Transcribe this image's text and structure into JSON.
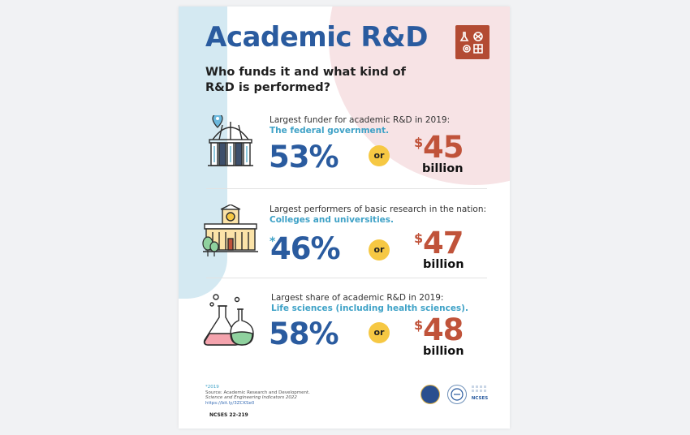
{
  "header": {
    "title": "Academic R&D",
    "subtitle": "Who funds it and what kind of R&D is performed?"
  },
  "icons": {
    "logo": "science-category-icon",
    "capitol": "capitol-building-icon",
    "university": "university-building-icon",
    "flasks": "lab-flasks-icon"
  },
  "stats": [
    {
      "label": "Largest funder for academic R&D in 2019:",
      "highlight": "The federal government.",
      "percent": "53%",
      "asterisk": "",
      "or": "or",
      "dollar": "$",
      "amount": "45",
      "unit": "billion"
    },
    {
      "label": "Largest performers of basic research in the nation:",
      "highlight": "Colleges and universities.",
      "percent": "46%",
      "asterisk": "*",
      "or": "or",
      "dollar": "$",
      "amount": "47",
      "unit": "billion"
    },
    {
      "label": "Largest share of academic R&D in 2019:",
      "highlight": "Life sciences (including health sciences).",
      "percent": "58%",
      "asterisk": "",
      "or": "or",
      "dollar": "$",
      "amount": "48",
      "unit": "billion"
    }
  ],
  "footer": {
    "note": "*2019",
    "source": "Source: Academic Research and Development.",
    "publication": "Science and Engineering Indicators 2022",
    "link": "https://bit.ly/3ZCKSe0",
    "report_id": "NCSES 22-219",
    "ncses": "NCSES"
  },
  "colors": {
    "title_blue": "#2a5b9f",
    "highlight_teal": "#3fa2c7",
    "dollar_red": "#c0533a",
    "or_yellow": "#f6c843",
    "bg_blue": "#d4e9f2",
    "bg_pink": "#f7e3e5"
  }
}
